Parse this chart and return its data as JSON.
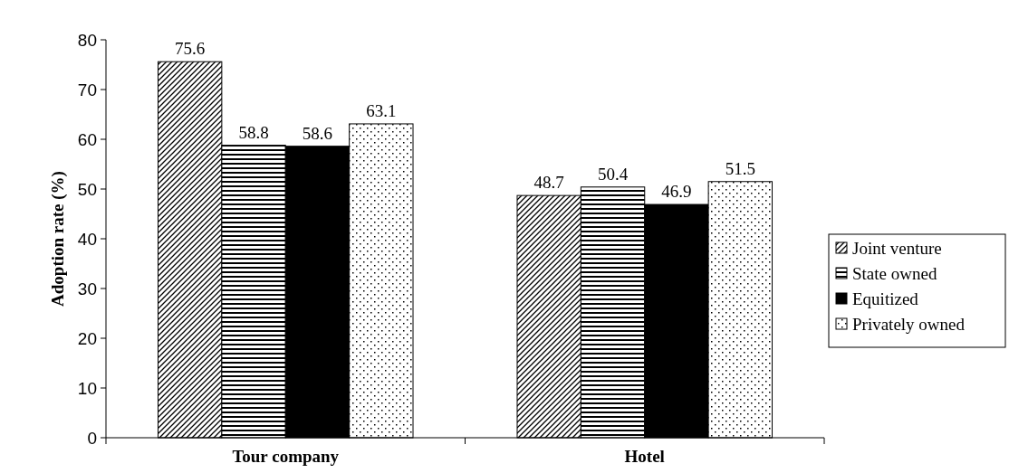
{
  "chart_data": {
    "type": "bar",
    "ylabel": "Adoption rate (%)",
    "categories": [
      "Tour company",
      "Hotel"
    ],
    "series": [
      {
        "name": "Joint venture",
        "color": "#000000",
        "values": [
          75.6,
          48.7
        ]
      },
      {
        "name": "State owned",
        "color": "#000000",
        "values": [
          58.8,
          50.4
        ]
      },
      {
        "name": "Equitized",
        "color": "#000000",
        "values": [
          58.6,
          46.9
        ]
      },
      {
        "name": "Privately owned",
        "color": "#000000",
        "values": [
          63.1,
          51.5
        ]
      }
    ],
    "ylim": [
      0,
      80
    ],
    "yticks": [
      0,
      10,
      20,
      30,
      40,
      50,
      60,
      70,
      80
    ],
    "data_labels": true,
    "legend": "right",
    "grid": false
  }
}
